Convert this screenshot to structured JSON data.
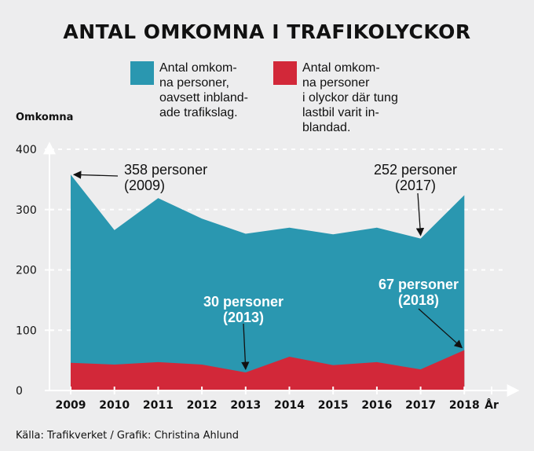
{
  "chart_data": {
    "type": "area",
    "title": "ANTAL OMKOMNA I TRAFIKOLYCKOR",
    "ylabel": "Omkomna",
    "xlabel": "År",
    "x": [
      2009,
      2010,
      2011,
      2012,
      2013,
      2014,
      2015,
      2016,
      2017,
      2018
    ],
    "ylim": [
      0,
      400
    ],
    "yticks": [
      0,
      100,
      200,
      300,
      400
    ],
    "grid": true,
    "legend_position": "top",
    "series": [
      {
        "name": "Antal omkomna personer, oavsett inblandade trafikslag.",
        "legend_lines": [
          "Antal omkom-",
          "na personer,",
          "oavsett inbland-",
          "ade trafikslag."
        ],
        "color": "#2a97b0",
        "values": [
          358,
          266,
          319,
          285,
          260,
          270,
          259,
          270,
          252,
          324
        ]
      },
      {
        "name": "Antal omkomna personer i olyckor där tung lastbil varit inblandad.",
        "legend_lines": [
          "Antal omkom-",
          "na personer",
          "i olyckor där tung",
          "lastbil varit in-",
          "blandad."
        ],
        "color": "#d22839",
        "values": [
          46,
          43,
          47,
          43,
          30,
          56,
          42,
          47,
          35,
          67
        ]
      }
    ],
    "annotations": [
      {
        "lines": [
          "358 personer",
          "(2009)"
        ],
        "x": 2009,
        "series": 0,
        "style": "dark"
      },
      {
        "lines": [
          "252 personer",
          "(2017)"
        ],
        "x": 2017,
        "series": 0,
        "style": "dark"
      },
      {
        "lines": [
          "30 personer",
          "(2013)"
        ],
        "x": 2013,
        "series": 1,
        "style": "light"
      },
      {
        "lines": [
          "67 personer",
          "(2018)"
        ],
        "x": 2018,
        "series": 1,
        "style": "light"
      }
    ]
  },
  "source": "Källa: Trafikverket / Grafik: Christina Ahlund"
}
